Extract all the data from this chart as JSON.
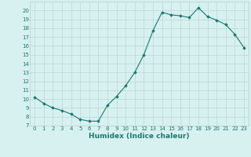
{
  "x": [
    0,
    1,
    2,
    3,
    4,
    5,
    6,
    7,
    8,
    9,
    10,
    11,
    12,
    13,
    14,
    15,
    16,
    17,
    18,
    19,
    20,
    21,
    22,
    23
  ],
  "y": [
    10.2,
    9.5,
    9.0,
    8.7,
    8.3,
    7.7,
    7.5,
    7.5,
    9.3,
    10.3,
    11.5,
    13.0,
    15.0,
    17.7,
    19.8,
    19.5,
    19.4,
    19.2,
    20.3,
    19.3,
    18.9,
    18.4,
    17.3,
    15.8
  ],
  "line_color": "#1a7a6e",
  "marker": "D",
  "marker_size": 1.8,
  "bg_color": "#d7f0f0",
  "grid_color": "#b8d0ce",
  "tick_color": "#1a7a6e",
  "xlabel": "Humidex (Indice chaleur)",
  "xlabel_fontsize": 6.5,
  "ylim": [
    7,
    21
  ],
  "xlim": [
    -0.5,
    23.5
  ],
  "yticks": [
    7,
    8,
    9,
    10,
    11,
    12,
    13,
    14,
    15,
    16,
    17,
    18,
    19,
    20
  ],
  "xticks": [
    0,
    1,
    2,
    3,
    4,
    5,
    6,
    7,
    8,
    9,
    10,
    11,
    12,
    13,
    14,
    15,
    16,
    17,
    18,
    19,
    20,
    21,
    22,
    23
  ],
  "tick_fontsize": 5.0,
  "linewidth": 0.8
}
